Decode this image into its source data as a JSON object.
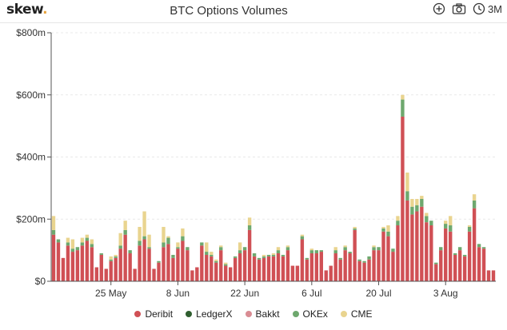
{
  "header": {
    "logo_text": "skew",
    "logo_dot": ".",
    "title": "BTC Options Volumes",
    "icons": [
      "plus-circle-icon",
      "camera-icon",
      "clock-icon"
    ],
    "range_label": "3M"
  },
  "colors": {
    "Deribit": "#d05055",
    "LedgerX": "#2f5e2f",
    "Bakkt": "#d98c93",
    "OKEx": "#6ea86e",
    "CME": "#e9d48f"
  },
  "chart_data": {
    "type": "bar",
    "stacked": true,
    "title": "BTC Options Volumes",
    "xlabel": "",
    "ylabel": "",
    "ylim": [
      0,
      800
    ],
    "y_ticks": [
      "$0",
      "$200m",
      "$400m",
      "$600m",
      "$800m"
    ],
    "y_tick_values": [
      0,
      200,
      400,
      600,
      800
    ],
    "x_tick_labels": [
      "25 May",
      "8 Jun",
      "22 Jun",
      "6 Jul",
      "20 Jul",
      "3 Aug"
    ],
    "x_tick_dates": [
      "2020-05-25",
      "2020-06-08",
      "2020-06-22",
      "2020-07-06",
      "2020-07-20",
      "2020-08-03"
    ],
    "categories": [
      "2020-05-13",
      "2020-05-14",
      "2020-05-15",
      "2020-05-16",
      "2020-05-17",
      "2020-05-18",
      "2020-05-19",
      "2020-05-20",
      "2020-05-21",
      "2020-05-22",
      "2020-05-23",
      "2020-05-24",
      "2020-05-25",
      "2020-05-26",
      "2020-05-27",
      "2020-05-28",
      "2020-05-29",
      "2020-05-30",
      "2020-05-31",
      "2020-06-01",
      "2020-06-02",
      "2020-06-03",
      "2020-06-04",
      "2020-06-05",
      "2020-06-06",
      "2020-06-07",
      "2020-06-08",
      "2020-06-09",
      "2020-06-10",
      "2020-06-11",
      "2020-06-12",
      "2020-06-13",
      "2020-06-14",
      "2020-06-15",
      "2020-06-16",
      "2020-06-17",
      "2020-06-18",
      "2020-06-19",
      "2020-06-20",
      "2020-06-21",
      "2020-06-22",
      "2020-06-23",
      "2020-06-24",
      "2020-06-25",
      "2020-06-26",
      "2020-06-27",
      "2020-06-28",
      "2020-06-29",
      "2020-06-30",
      "2020-07-01",
      "2020-07-02",
      "2020-07-03",
      "2020-07-04",
      "2020-07-05",
      "2020-07-06",
      "2020-07-07",
      "2020-07-08",
      "2020-07-09",
      "2020-07-10",
      "2020-07-11",
      "2020-07-12",
      "2020-07-13",
      "2020-07-14",
      "2020-07-15",
      "2020-07-16",
      "2020-07-17",
      "2020-07-18",
      "2020-07-19",
      "2020-07-20",
      "2020-07-21",
      "2020-07-22",
      "2020-07-23",
      "2020-07-24",
      "2020-07-25",
      "2020-07-26",
      "2020-07-27",
      "2020-07-28",
      "2020-07-29",
      "2020-07-30",
      "2020-07-31",
      "2020-08-01",
      "2020-08-02",
      "2020-08-03",
      "2020-08-04",
      "2020-08-05",
      "2020-08-06",
      "2020-08-07",
      "2020-08-08",
      "2020-08-09",
      "2020-08-10",
      "2020-08-11",
      "2020-08-12",
      "2020-08-13"
    ],
    "series": [
      {
        "name": "Deribit",
        "values": [
          150,
          125,
          75,
          115,
          95,
          100,
          115,
          130,
          110,
          45,
          85,
          40,
          65,
          75,
          105,
          150,
          90,
          40,
          115,
          135,
          105,
          40,
          60,
          110,
          120,
          75,
          105,
          130,
          100,
          35,
          45,
          115,
          85,
          80,
          60,
          100,
          50,
          45,
          75,
          90,
          100,
          165,
          80,
          70,
          75,
          80,
          80,
          90,
          80,
          100,
          50,
          50,
          135,
          70,
          90,
          90,
          95,
          35,
          50,
          90,
          70,
          100,
          90,
          165,
          65,
          60,
          70,
          100,
          100,
          160,
          145,
          95,
          180,
          530,
          260,
          215,
          225,
          240,
          190,
          180,
          55,
          100,
          170,
          160,
          85,
          100,
          80,
          160,
          235,
          110,
          105,
          35,
          35
        ]
      },
      {
        "name": "LedgerX",
        "values": [
          0,
          0,
          0,
          0,
          0,
          0,
          0,
          0,
          0,
          0,
          0,
          0,
          0,
          0,
          0,
          0,
          0,
          0,
          0,
          0,
          0,
          0,
          0,
          0,
          0,
          0,
          0,
          0,
          0,
          0,
          0,
          0,
          0,
          0,
          0,
          0,
          0,
          0,
          0,
          0,
          0,
          0,
          0,
          0,
          0,
          0,
          0,
          0,
          0,
          0,
          0,
          0,
          0,
          0,
          0,
          0,
          0,
          0,
          0,
          0,
          0,
          0,
          0,
          0,
          0,
          0,
          0,
          0,
          0,
          0,
          0,
          0,
          0,
          0,
          0,
          0,
          0,
          0,
          0,
          0,
          0,
          0,
          0,
          0,
          0,
          0,
          0,
          0,
          0,
          0,
          0,
          0,
          0
        ]
      },
      {
        "name": "Bakkt",
        "values": [
          0,
          0,
          0,
          0,
          0,
          0,
          0,
          0,
          0,
          0,
          0,
          0,
          0,
          0,
          0,
          0,
          0,
          0,
          0,
          0,
          0,
          0,
          0,
          0,
          0,
          0,
          0,
          0,
          0,
          0,
          0,
          0,
          0,
          0,
          0,
          0,
          0,
          0,
          0,
          0,
          0,
          0,
          0,
          0,
          0,
          0,
          0,
          0,
          0,
          0,
          0,
          0,
          0,
          0,
          0,
          0,
          0,
          0,
          0,
          0,
          0,
          0,
          0,
          0,
          0,
          0,
          0,
          0,
          0,
          0,
          0,
          0,
          0,
          0,
          0,
          0,
          0,
          0,
          0,
          0,
          0,
          0,
          0,
          0,
          0,
          0,
          0,
          0,
          0,
          0,
          0,
          0,
          0
        ]
      },
      {
        "name": "OKEx",
        "values": [
          15,
          10,
          0,
          10,
          10,
          10,
          10,
          10,
          10,
          0,
          5,
          0,
          5,
          5,
          10,
          15,
          10,
          0,
          15,
          10,
          5,
          0,
          5,
          15,
          20,
          10,
          5,
          15,
          10,
          0,
          0,
          10,
          10,
          5,
          5,
          10,
          5,
          0,
          5,
          10,
          10,
          15,
          10,
          5,
          5,
          5,
          5,
          10,
          5,
          10,
          0,
          0,
          10,
          5,
          10,
          10,
          5,
          0,
          0,
          10,
          5,
          10,
          5,
          5,
          5,
          5,
          10,
          10,
          10,
          10,
          15,
          10,
          15,
          55,
          30,
          25,
          20,
          25,
          20,
          15,
          5,
          10,
          15,
          20,
          5,
          10,
          5,
          15,
          25,
          10,
          5,
          0,
          0
        ]
      },
      {
        "name": "CME",
        "values": [
          45,
          0,
          0,
          15,
          30,
          0,
          15,
          10,
          15,
          0,
          0,
          0,
          10,
          5,
          40,
          30,
          0,
          0,
          45,
          80,
          40,
          0,
          0,
          50,
          5,
          0,
          15,
          25,
          0,
          0,
          0,
          0,
          30,
          10,
          5,
          5,
          5,
          0,
          0,
          25,
          0,
          25,
          0,
          0,
          5,
          0,
          5,
          10,
          0,
          5,
          0,
          0,
          5,
          0,
          5,
          0,
          0,
          0,
          0,
          10,
          0,
          5,
          0,
          5,
          0,
          0,
          0,
          5,
          0,
          5,
          20,
          0,
          15,
          15,
          60,
          25,
          20,
          10,
          10,
          0,
          0,
          0,
          10,
          30,
          0,
          0,
          0,
          5,
          20,
          0,
          0,
          0,
          0
        ]
      }
    ],
    "legend": [
      "Deribit",
      "LedgerX",
      "Bakkt",
      "OKEx",
      "CME"
    ],
    "legend_position": "bottom",
    "grid": true
  }
}
